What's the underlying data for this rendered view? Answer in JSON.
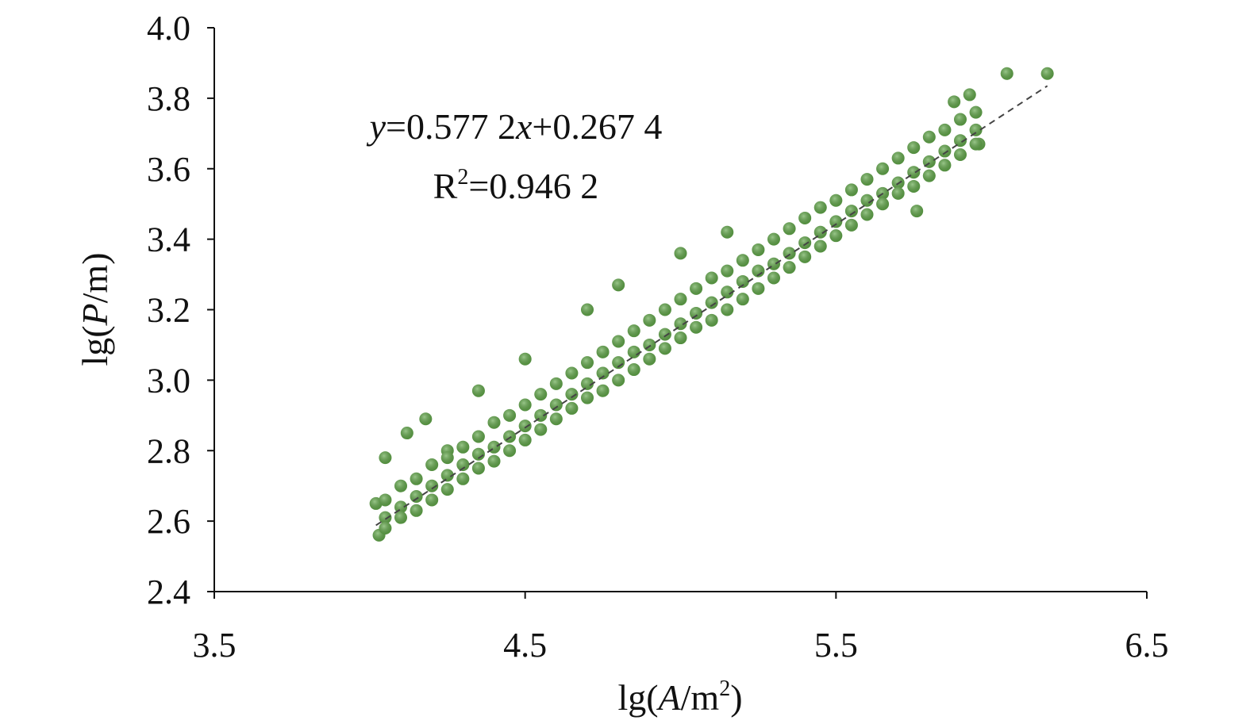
{
  "chart_data": {
    "type": "scatter",
    "x_label": [
      "lg(",
      "A",
      "/m",
      "2",
      ")"
    ],
    "y_label": [
      "lg(",
      "P",
      "/m)"
    ],
    "annotations": [
      [
        "y",
        "=0.577 2",
        "x",
        "+0.267 4"
      ],
      [
        "R",
        "2",
        "=0.946 2"
      ]
    ],
    "xlim": [
      3.5,
      6.5
    ],
    "ylim": [
      2.4,
      4.0
    ],
    "xticks": [
      3.5,
      4.5,
      5.5,
      6.5
    ],
    "yticks": [
      2.4,
      2.6,
      2.8,
      {
        "value": 3.0,
        "label": "3.0"
      },
      3.2,
      3.4,
      3.6,
      3.8,
      {
        "value": 4.0,
        "label": "4.0"
      }
    ],
    "color": "#62a84a",
    "trendline": {
      "x": [
        4.02,
        6.18
      ],
      "y": [
        2.588,
        3.835
      ],
      "color": "#444444"
    },
    "x": [
      4.02,
      4.05,
      4.12,
      4.18,
      4.25,
      4.35,
      4.5,
      4.7,
      4.8,
      5.0,
      5.15,
      6.05,
      6.18,
      5.88,
      5.93,
      4.03,
      5.76,
      5.96,
      4.05,
      4.05,
      4.05,
      4.1,
      4.1,
      4.1,
      4.15,
      4.15,
      4.15,
      4.2,
      4.2,
      4.2,
      4.25,
      4.25,
      4.25,
      4.3,
      4.3,
      4.3,
      4.35,
      4.35,
      4.35,
      4.4,
      4.4,
      4.4,
      4.45,
      4.45,
      4.45,
      4.5,
      4.5,
      4.5,
      4.55,
      4.55,
      4.55,
      4.6,
      4.6,
      4.6,
      4.65,
      4.65,
      4.65,
      4.7,
      4.7,
      4.7,
      4.75,
      4.75,
      4.75,
      4.8,
      4.8,
      4.8,
      4.85,
      4.85,
      4.85,
      4.9,
      4.9,
      4.9,
      4.95,
      4.95,
      4.95,
      5.0,
      5.0,
      5.0,
      5.05,
      5.05,
      5.05,
      5.1,
      5.1,
      5.1,
      5.15,
      5.15,
      5.15,
      5.2,
      5.2,
      5.2,
      5.25,
      5.25,
      5.25,
      5.3,
      5.3,
      5.3,
      5.35,
      5.35,
      5.35,
      5.4,
      5.4,
      5.4,
      5.45,
      5.45,
      5.45,
      5.5,
      5.5,
      5.5,
      5.55,
      5.55,
      5.55,
      5.6,
      5.6,
      5.6,
      5.65,
      5.65,
      5.65,
      5.7,
      5.7,
      5.7,
      5.75,
      5.75,
      5.75,
      5.8,
      5.8,
      5.8,
      5.85,
      5.85,
      5.85,
      5.9,
      5.9,
      5.9,
      5.95,
      5.95,
      5.95
    ],
    "y": [
      2.65,
      2.78,
      2.85,
      2.89,
      2.8,
      2.97,
      3.06,
      3.2,
      3.27,
      3.36,
      3.42,
      3.87,
      3.87,
      3.79,
      3.81,
      2.56,
      3.48,
      3.67,
      2.66,
      2.61,
      2.58,
      2.7,
      2.64,
      2.61,
      2.72,
      2.67,
      2.63,
      2.76,
      2.7,
      2.66,
      2.78,
      2.73,
      2.69,
      2.81,
      2.76,
      2.72,
      2.84,
      2.79,
      2.75,
      2.88,
      2.81,
      2.77,
      2.9,
      2.84,
      2.8,
      2.93,
      2.87,
      2.83,
      2.96,
      2.9,
      2.86,
      2.99,
      2.93,
      2.89,
      3.02,
      2.96,
      2.92,
      3.05,
      2.99,
      2.95,
      3.08,
      3.02,
      2.97,
      3.11,
      3.05,
      3.0,
      3.14,
      3.08,
      3.03,
      3.17,
      3.1,
      3.06,
      3.2,
      3.13,
      3.09,
      3.23,
      3.16,
      3.12,
      3.26,
      3.19,
      3.15,
      3.29,
      3.22,
      3.17,
      3.31,
      3.25,
      3.2,
      3.34,
      3.28,
      3.23,
      3.37,
      3.31,
      3.26,
      3.4,
      3.33,
      3.29,
      3.43,
      3.36,
      3.32,
      3.46,
      3.39,
      3.35,
      3.49,
      3.42,
      3.38,
      3.51,
      3.45,
      3.41,
      3.54,
      3.48,
      3.44,
      3.57,
      3.51,
      3.47,
      3.6,
      3.53,
      3.5,
      3.63,
      3.56,
      3.53,
      3.66,
      3.59,
      3.55,
      3.69,
      3.62,
      3.58,
      3.71,
      3.65,
      3.61,
      3.74,
      3.68,
      3.64,
      3.76,
      3.71,
      3.67
    ]
  }
}
